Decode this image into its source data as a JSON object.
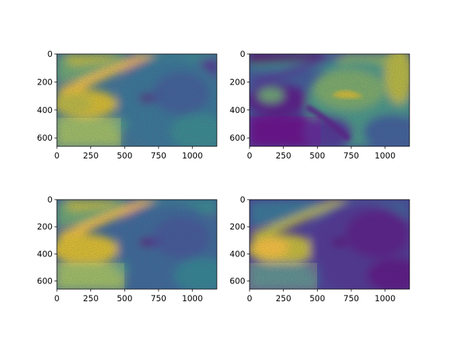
{
  "chart_data": [
    {
      "type": "heatmap",
      "colormap": "viridis",
      "channel": "brightness variant A",
      "xlim": [
        0,
        1180
      ],
      "ylim": [
        660,
        0
      ],
      "xticks": [
        0,
        250,
        500,
        750,
        1000
      ],
      "yticks": [
        0,
        200,
        400,
        600
      ],
      "xtick_labels": [
        "0",
        "250",
        "500",
        "750",
        "1000"
      ],
      "ytick_labels": [
        "0",
        "200",
        "400",
        "600"
      ]
    },
    {
      "type": "heatmap",
      "colormap": "viridis",
      "channel": "brightness variant B",
      "xlim": [
        0,
        1180
      ],
      "ylim": [
        660,
        0
      ],
      "xticks": [
        0,
        250,
        500,
        750,
        1000
      ],
      "yticks": [
        0,
        200,
        400,
        600
      ],
      "xtick_labels": [
        "0",
        "250",
        "500",
        "750",
        "1000"
      ],
      "ytick_labels": [
        "0",
        "200",
        "400",
        "600"
      ]
    },
    {
      "type": "heatmap",
      "colormap": "viridis",
      "channel": "brightness variant C",
      "xlim": [
        0,
        1180
      ],
      "ylim": [
        660,
        0
      ],
      "xticks": [
        0,
        250,
        500,
        750,
        1000
      ],
      "yticks": [
        0,
        200,
        400,
        600
      ],
      "xtick_labels": [
        "0",
        "250",
        "500",
        "750",
        "1000"
      ],
      "ytick_labels": [
        "0",
        "200",
        "400",
        "600"
      ]
    },
    {
      "type": "heatmap",
      "colormap": "viridis",
      "channel": "brightness variant D",
      "xlim": [
        0,
        1180
      ],
      "ylim": [
        660,
        0
      ],
      "xticks": [
        0,
        250,
        500,
        750,
        1000
      ],
      "yticks": [
        0,
        200,
        400,
        600
      ],
      "xtick_labels": [
        "0",
        "250",
        "500",
        "750",
        "1000"
      ],
      "ytick_labels": [
        "0",
        "200",
        "400",
        "600"
      ]
    }
  ]
}
